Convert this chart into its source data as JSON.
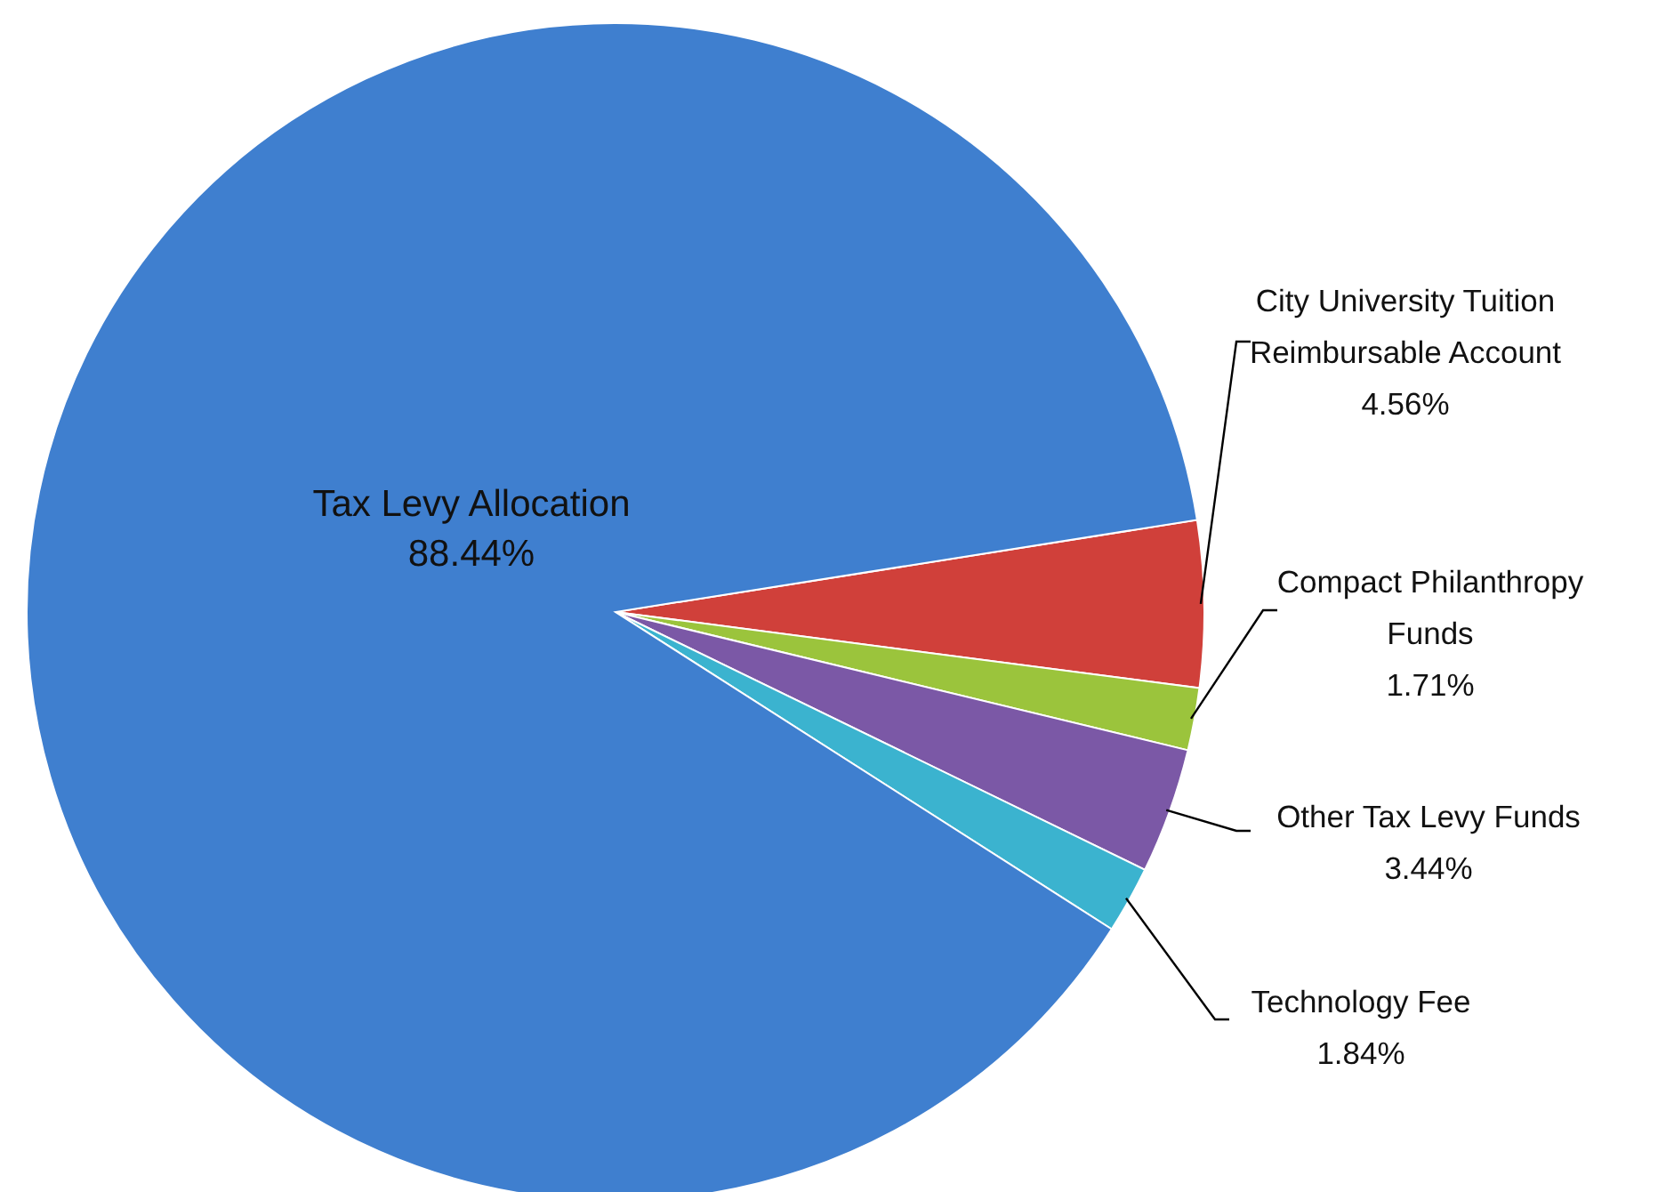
{
  "chart_data": {
    "type": "pie",
    "categories": [
      "City University Tuition Reimbursable Account",
      "Compact Philanthropy Funds",
      "Other Tax Levy Funds",
      "Technology Fee",
      "Tax Levy Allocation"
    ],
    "values": [
      4.56,
      1.71,
      3.44,
      1.84,
      88.44
    ],
    "colors": [
      "#d0403a",
      "#9bc43c",
      "#7b58a6",
      "#3bb3cf",
      "#3f7fcf"
    ],
    "value_labels": [
      "4.56%",
      "1.71%",
      "3.44%",
      "1.84%",
      "88.44%"
    ]
  }
}
